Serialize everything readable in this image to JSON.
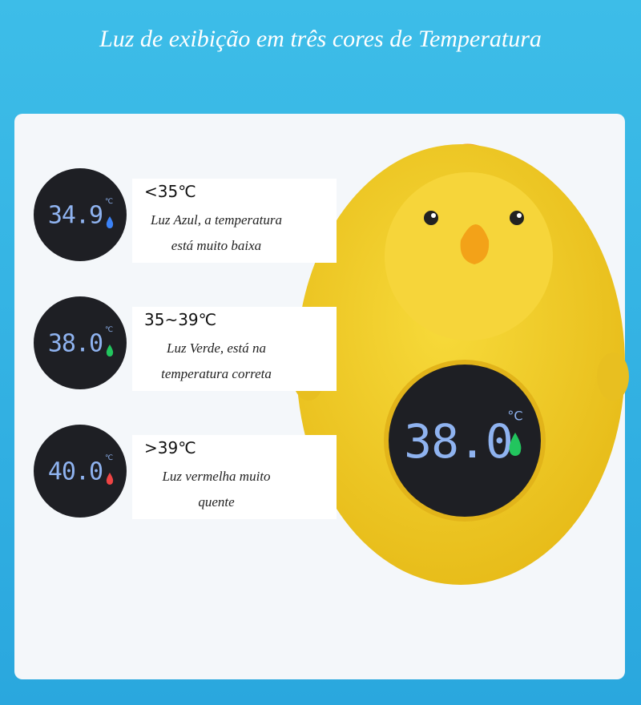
{
  "header": {
    "title": "Luz de exibição  em três cores de Temperatura"
  },
  "items": [
    {
      "range": "<35℃",
      "display": "34.9",
      "unit": "℃",
      "lines": [
        "Luz Azul, a temperatura",
        "está muito baixa"
      ]
    },
    {
      "range": "35~39℃",
      "display": "38.0",
      "unit": "℃",
      "lines": [
        "Luz Verde, está na",
        "temperatura correta"
      ]
    },
    {
      "range": ">39℃",
      "display": "40.0",
      "unit": "℃",
      "lines": [
        "Luz vermelha muito",
        "quente"
      ]
    }
  ],
  "device": {
    "display": "38.0",
    "unit": "°C"
  }
}
